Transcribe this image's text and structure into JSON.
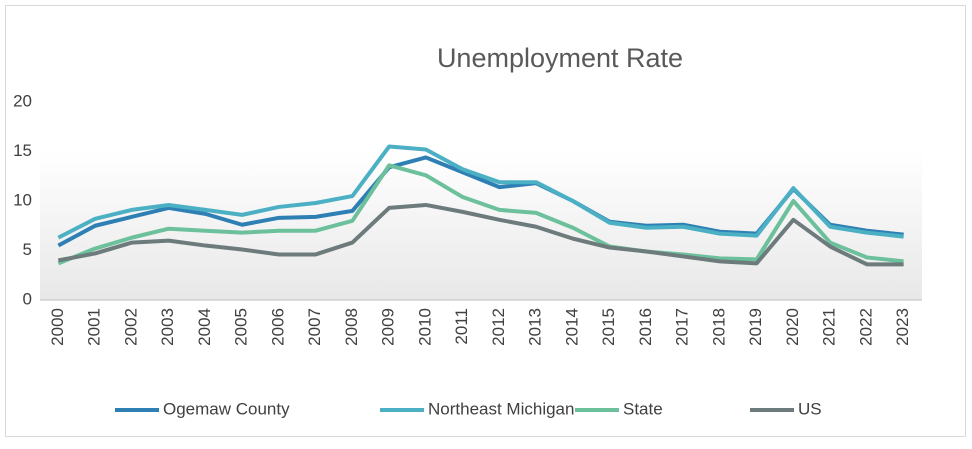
{
  "chart_data": {
    "type": "line",
    "title": "Unemployment Rate",
    "categories": [
      "2000",
      "2001",
      "2002",
      "2003",
      "2004",
      "2005",
      "2006",
      "2007",
      "2008",
      "2009",
      "2010",
      "2011",
      "2012",
      "2013",
      "2014",
      "2015",
      "2016",
      "2017",
      "2018",
      "2019",
      "2020",
      "2021",
      "2022",
      "2023"
    ],
    "series": [
      {
        "name": "Ogemaw County",
        "color": "#2e7fb4",
        "values": [
          5.5,
          7.5,
          8.4,
          9.3,
          8.7,
          7.6,
          8.3,
          8.4,
          9.0,
          13.4,
          14.4,
          12.9,
          11.4,
          11.8,
          10.0,
          7.9,
          7.5,
          7.6,
          6.9,
          6.7,
          11.2,
          7.6,
          7.0,
          6.6
        ]
      },
      {
        "name": "Northeast Michigan",
        "color": "#4cb0c4",
        "values": [
          6.3,
          8.2,
          9.1,
          9.6,
          9.1,
          8.6,
          9.4,
          9.8,
          10.5,
          15.5,
          15.2,
          13.2,
          11.9,
          11.9,
          10.0,
          7.8,
          7.3,
          7.4,
          6.7,
          6.5,
          11.3,
          7.4,
          6.8,
          6.4
        ]
      },
      {
        "name": "State",
        "color": "#6cc09c",
        "values": [
          3.7,
          5.2,
          6.3,
          7.2,
          7.0,
          6.8,
          7.0,
          7.0,
          8.0,
          13.6,
          12.6,
          10.4,
          9.1,
          8.8,
          7.3,
          5.4,
          4.9,
          4.6,
          4.2,
          4.1,
          10.0,
          5.8,
          4.3,
          3.9
        ]
      },
      {
        "name": "US",
        "color": "#6d7b7c",
        "values": [
          4.0,
          4.7,
          5.8,
          6.0,
          5.5,
          5.1,
          4.6,
          4.6,
          5.8,
          9.3,
          9.6,
          8.9,
          8.1,
          7.4,
          6.2,
          5.3,
          4.9,
          4.4,
          3.9,
          3.7,
          8.1,
          5.4,
          3.6,
          3.6
        ]
      }
    ],
    "ylim": [
      0,
      20
    ],
    "yticks": [
      0,
      5,
      10,
      15,
      20
    ],
    "grid": false,
    "legend": "bottom"
  }
}
